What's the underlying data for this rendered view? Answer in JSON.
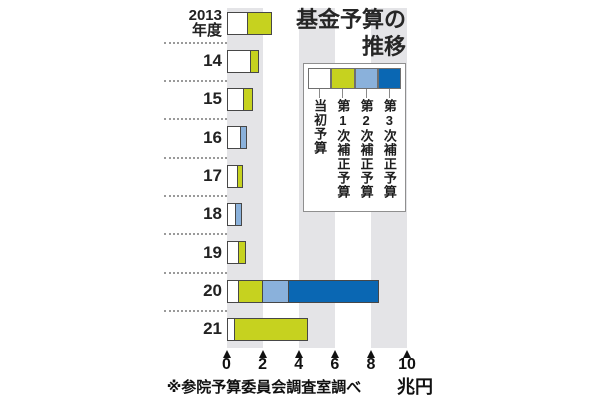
{
  "title": {
    "line1": "基金予算の",
    "line2": "推移"
  },
  "source_note": "※参院予算委員会調査室調べ",
  "unit_label": "兆円",
  "colors": {
    "initial_budget": "#ffffff",
    "supp1": "#c6d21f",
    "supp2": "#8ab1db",
    "supp3": "#0a67b3",
    "stripe": "#e4e4e7"
  },
  "chart_data": {
    "type": "bar",
    "orientation": "horizontal",
    "title": "基金予算の推移",
    "xlabel": "兆円",
    "xlim": [
      0,
      10
    ],
    "x_ticks": [
      0,
      2,
      4,
      6,
      8,
      10
    ],
    "stripe_bands": [
      [
        0,
        2
      ],
      [
        4,
        6
      ],
      [
        8,
        10
      ]
    ],
    "legend_position": "top-right box, vertical labels",
    "categories": [
      "2013\n年度",
      "14",
      "15",
      "16",
      "17",
      "18",
      "19",
      "20",
      "21"
    ],
    "series": [
      {
        "name": "当初予算",
        "color": "#ffffff",
        "values": [
          1.2,
          1.35,
          0.95,
          0.8,
          0.65,
          0.55,
          0.7,
          0.7,
          0.45
        ]
      },
      {
        "name": "第1次補正予算",
        "color": "#c6d21f",
        "values": [
          1.3,
          0.45,
          0.5,
          0,
          0.25,
          0,
          0.4,
          1.3,
          4.05
        ]
      },
      {
        "name": "第2次補正予算",
        "color": "#8ab1db",
        "values": [
          0,
          0,
          0,
          0.35,
          0,
          0.3,
          0,
          1.45,
          0
        ]
      },
      {
        "name": "第3次補正予算",
        "color": "#0a67b3",
        "values": [
          0,
          0,
          0,
          0,
          0,
          0,
          0,
          5.0,
          0
        ]
      }
    ]
  }
}
